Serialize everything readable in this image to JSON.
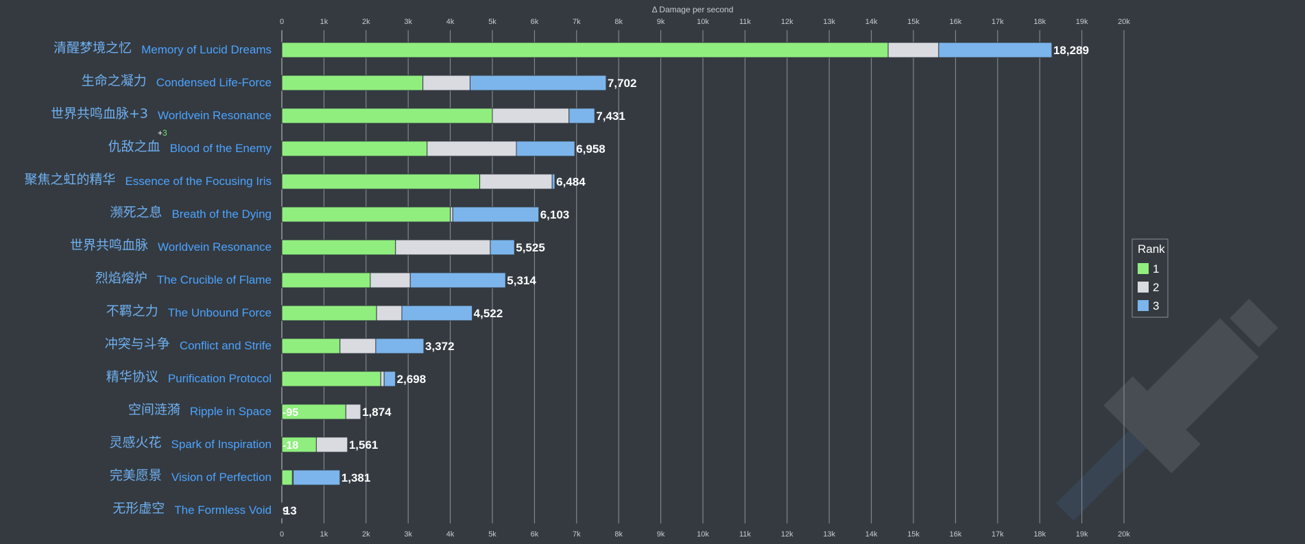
{
  "chart_data": {
    "type": "bar",
    "orientation": "horizontal",
    "stacked": true,
    "xlabel": "Δ Damage per second",
    "xlim": [
      0,
      20000
    ],
    "xticks": [
      "0",
      "1k",
      "2k",
      "3k",
      "4k",
      "5k",
      "6k",
      "7k",
      "8k",
      "9k",
      "10k",
      "11k",
      "12k",
      "13k",
      "14k",
      "15k",
      "16k",
      "17k",
      "18k",
      "19k",
      "20k"
    ],
    "grid": true,
    "legend": {
      "title": "Rank",
      "position": "right",
      "entries": [
        "1",
        "2",
        "3"
      ]
    },
    "colors": {
      "1": "#90ee7e",
      "2": "#d9dbe0",
      "3": "#7cb5ec"
    },
    "series_names": [
      "1",
      "2",
      "3"
    ],
    "items": [
      {
        "name_cn": "清醒梦境之忆",
        "name_en": "Memory of Lucid Dreams",
        "values": [
          14400,
          1200,
          2689
        ],
        "total": "18,289"
      },
      {
        "name_cn": "生命之凝力",
        "name_en": "Condensed Life-Force",
        "values": [
          3350,
          1120,
          3232
        ],
        "total": "7,702"
      },
      {
        "name_cn": "世界共鸣血脉+3",
        "name_en": "Worldvein Resonance",
        "rank_note": "3",
        "values": [
          5000,
          1820,
          611
        ],
        "total": "7,431"
      },
      {
        "name_cn": "仇敌之血",
        "name_en": "Blood of the Enemy",
        "values": [
          3450,
          2120,
          1388
        ],
        "total": "6,958"
      },
      {
        "name_cn": "聚焦之虹的精华",
        "name_en": "Essence of the Focusing Iris",
        "values": [
          4700,
          1720,
          64
        ],
        "total": "6,484"
      },
      {
        "name_cn": "濒死之息",
        "name_en": "Breath of the Dying",
        "values": [
          4000,
          60,
          2043
        ],
        "total": "6,103"
      },
      {
        "name_cn": "世界共鸣血脉",
        "name_en": "Worldvein Resonance",
        "values": [
          2700,
          2250,
          575
        ],
        "total": "5,525"
      },
      {
        "name_cn": "烈焰熔炉",
        "name_en": "The Crucible of Flame",
        "values": [
          2100,
          950,
          2264
        ],
        "total": "5,314"
      },
      {
        "name_cn": "不羁之力",
        "name_en": "The Unbound Force",
        "values": [
          2250,
          600,
          1672
        ],
        "total": "4,522"
      },
      {
        "name_cn": "冲突与斗争",
        "name_en": "Conflict and Strife",
        "values": [
          1380,
          850,
          1142
        ],
        "total": "3,372"
      },
      {
        "name_cn": "精华协议",
        "name_en": "Purification Protocol",
        "values": [
          2350,
          80,
          268
        ],
        "total": "2,698"
      },
      {
        "name_cn": "空间涟漪",
        "name_en": "Ripple in Space",
        "values": [
          1520,
          354,
          0
        ],
        "total": "1,874",
        "neg_label": "-95"
      },
      {
        "name_cn": "灵感火花",
        "name_en": "Spark of Inspiration",
        "values": [
          820,
          741,
          0
        ],
        "total": "1,561",
        "neg_label": "-18"
      },
      {
        "name_cn": "完美愿景",
        "name_en": "Vision of Perfection",
        "values": [
          250,
          20,
          1111
        ],
        "total": "1,381"
      },
      {
        "name_cn": "无形虚空",
        "name_en": "The Formless Void",
        "values": [
          9,
          0,
          4
        ],
        "total": "13",
        "pre_label": "9"
      }
    ]
  }
}
